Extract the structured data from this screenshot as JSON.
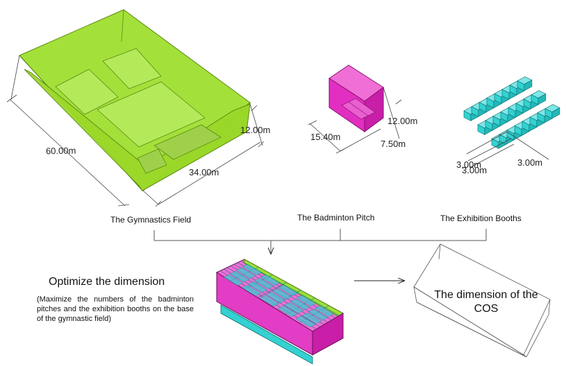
{
  "labels": {
    "gymnastics": "The Gymnastics Field",
    "badminton": "The Badminton Pitch",
    "exhibition": "The Exhibition Booths"
  },
  "dimensions": {
    "gym_length": "60.00m",
    "gym_width": "34.00m",
    "gym_height": "12.00m",
    "bad_length": "15.40m",
    "bad_width": "7.50m",
    "bad_height": "12.00m",
    "booth_a": "3.00m",
    "booth_b": "3.00m",
    "booth_c": "3.00m"
  },
  "optimize": {
    "title": "Optimize the dimension",
    "description": "(Maximize the numbers of the badminton pitches and the exhibition booths on the base of the gymnastic field)"
  },
  "cos": {
    "text": "The dimension of the COS"
  },
  "colors": {
    "gym_green": "#8fd41f",
    "badminton_magenta": "#e62bc0",
    "booth_cyan": "#33d1d1"
  }
}
